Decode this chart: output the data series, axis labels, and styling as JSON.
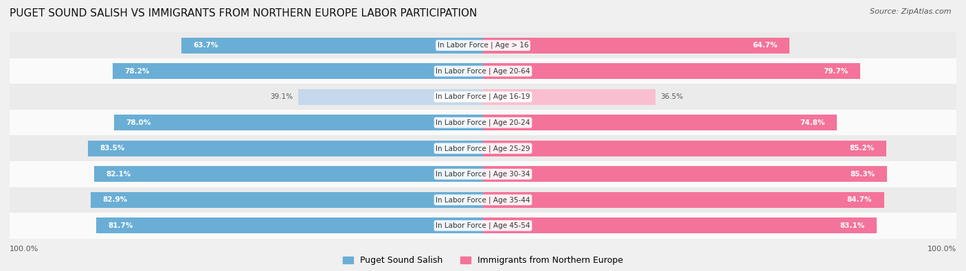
{
  "title": "PUGET SOUND SALISH VS IMMIGRANTS FROM NORTHERN EUROPE LABOR PARTICIPATION",
  "source": "Source: ZipAtlas.com",
  "categories": [
    "In Labor Force | Age > 16",
    "In Labor Force | Age 20-64",
    "In Labor Force | Age 16-19",
    "In Labor Force | Age 20-24",
    "In Labor Force | Age 25-29",
    "In Labor Force | Age 30-34",
    "In Labor Force | Age 35-44",
    "In Labor Force | Age 45-54"
  ],
  "left_values": [
    63.7,
    78.2,
    39.1,
    78.0,
    83.5,
    82.1,
    82.9,
    81.7
  ],
  "right_values": [
    64.7,
    79.7,
    36.5,
    74.8,
    85.2,
    85.3,
    84.7,
    83.1
  ],
  "left_color_normal": "#6aaed6",
  "left_color_light": "#c6d9ec",
  "right_color_normal": "#f4739a",
  "right_color_light": "#f9bfd0",
  "label_color_white": "#ffffff",
  "label_color_dark": "#555555",
  "background_color": "#f0f0f0",
  "row_color_light": "#fafafa",
  "row_color_dark": "#ebebeb",
  "max_value": 100.0,
  "legend_left": "Puget Sound Salish",
  "legend_right": "Immigrants from Northern Europe",
  "title_fontsize": 11,
  "source_fontsize": 8,
  "bar_height": 0.62,
  "threshold_light": 50.0,
  "center_label_bg": "#ffffff"
}
